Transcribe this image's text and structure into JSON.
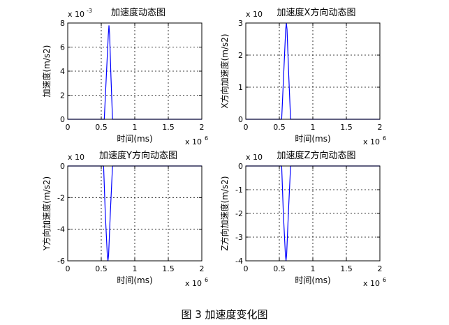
{
  "figure": {
    "caption": "图 3  加速度变化图"
  },
  "chart_data": [
    {
      "type": "line",
      "title": "加速度动态图",
      "xlabel": "时间(ms)",
      "ylabel": "加速度(m/s2)",
      "x_multiplier": "x 10",
      "x_multiplier_exp": "6",
      "y_multiplier": "x 10",
      "y_multiplier_exp": "-3",
      "xlim": [
        0,
        2
      ],
      "ylim": [
        0,
        8
      ],
      "xticks": [
        0,
        0.5,
        1,
        1.5,
        2
      ],
      "xtick_labels": [
        "0",
        "0.5",
        "1",
        "1.5",
        "2"
      ],
      "yticks": [
        0,
        2,
        4,
        6,
        8
      ],
      "ytick_labels": [
        "0",
        "2",
        "4",
        "6",
        "8"
      ],
      "grid": true,
      "line_color": "#0000ff",
      "series": [
        {
          "x": [
            0,
            0.545,
            0.575,
            0.605,
            0.615,
            0.625,
            0.645,
            0.668,
            2
          ],
          "y": [
            0,
            0,
            3.5,
            7.0,
            7.8,
            7.0,
            3.5,
            0,
            0
          ]
        }
      ]
    },
    {
      "type": "line",
      "title": "加速度X方向动态图",
      "xlabel": "时间(ms)",
      "ylabel": "X方向加速度(m/s2)",
      "x_multiplier": "x 10",
      "x_multiplier_exp": "6",
      "y_multiplier": "x 10",
      "y_multiplier_exp": "",
      "xlim": [
        0,
        2
      ],
      "ylim": [
        0,
        3
      ],
      "xticks": [
        0,
        0.5,
        1,
        1.5,
        2
      ],
      "xtick_labels": [
        "0",
        "0.5",
        "1",
        "1.5",
        "2"
      ],
      "yticks": [
        0,
        1,
        2,
        3
      ],
      "ytick_labels": [
        "0",
        "1",
        "2",
        "3"
      ],
      "grid": true,
      "line_color": "#0000ff",
      "series": [
        {
          "x": [
            0,
            0.535,
            0.565,
            0.595,
            0.605,
            0.615,
            0.64,
            0.668,
            2
          ],
          "y": [
            0,
            0,
            1.4,
            2.8,
            3.0,
            2.8,
            1.4,
            0,
            0
          ]
        }
      ]
    },
    {
      "type": "line",
      "title": "加速度Y方向动态图",
      "xlabel": "时间(ms)",
      "ylabel": "Y方向加速度(m/s2)",
      "x_multiplier": "x 10",
      "x_multiplier_exp": "6",
      "y_multiplier": "x 10",
      "y_multiplier_exp": "",
      "xlim": [
        0,
        2
      ],
      "ylim": [
        -6,
        0
      ],
      "xticks": [
        0,
        0.5,
        1,
        1.5,
        2
      ],
      "xtick_labels": [
        "0",
        "0.5",
        "1",
        "1.5",
        "2"
      ],
      "yticks": [
        -6,
        -4,
        -2,
        0
      ],
      "ytick_labels": [
        "-6",
        "-4",
        "-2",
        "0"
      ],
      "grid": true,
      "line_color": "#0000ff",
      "series": [
        {
          "x": [
            0,
            0.535,
            0.56,
            0.59,
            0.6,
            0.61,
            0.635,
            0.668,
            2
          ],
          "y": [
            0,
            0,
            -3.0,
            -5.6,
            -6.0,
            -5.6,
            -3.0,
            0,
            0
          ]
        }
      ]
    },
    {
      "type": "line",
      "title": "加速度Z方向动态图",
      "xlabel": "时间(ms)",
      "ylabel": "Z方向加速度(m/s2)",
      "x_multiplier": "x 10",
      "x_multiplier_exp": "6",
      "y_multiplier": "x 10",
      "y_multiplier_exp": "",
      "xlim": [
        0,
        2
      ],
      "ylim": [
        -4,
        0
      ],
      "xticks": [
        0,
        0.5,
        1,
        1.5,
        2
      ],
      "xtick_labels": [
        "0",
        "0.5",
        "1",
        "1.5",
        "2"
      ],
      "yticks": [
        -4,
        -3,
        -2,
        -1,
        0
      ],
      "ytick_labels": [
        "-4",
        "-3",
        "-2",
        "-1",
        "0"
      ],
      "grid": true,
      "line_color": "#0000ff",
      "series": [
        {
          "x": [
            0,
            0.535,
            0.56,
            0.59,
            0.6,
            0.61,
            0.635,
            0.668,
            2
          ],
          "y": [
            0,
            0,
            -2.0,
            -3.7,
            -4.0,
            -3.7,
            -2.0,
            0,
            0
          ]
        }
      ]
    }
  ]
}
